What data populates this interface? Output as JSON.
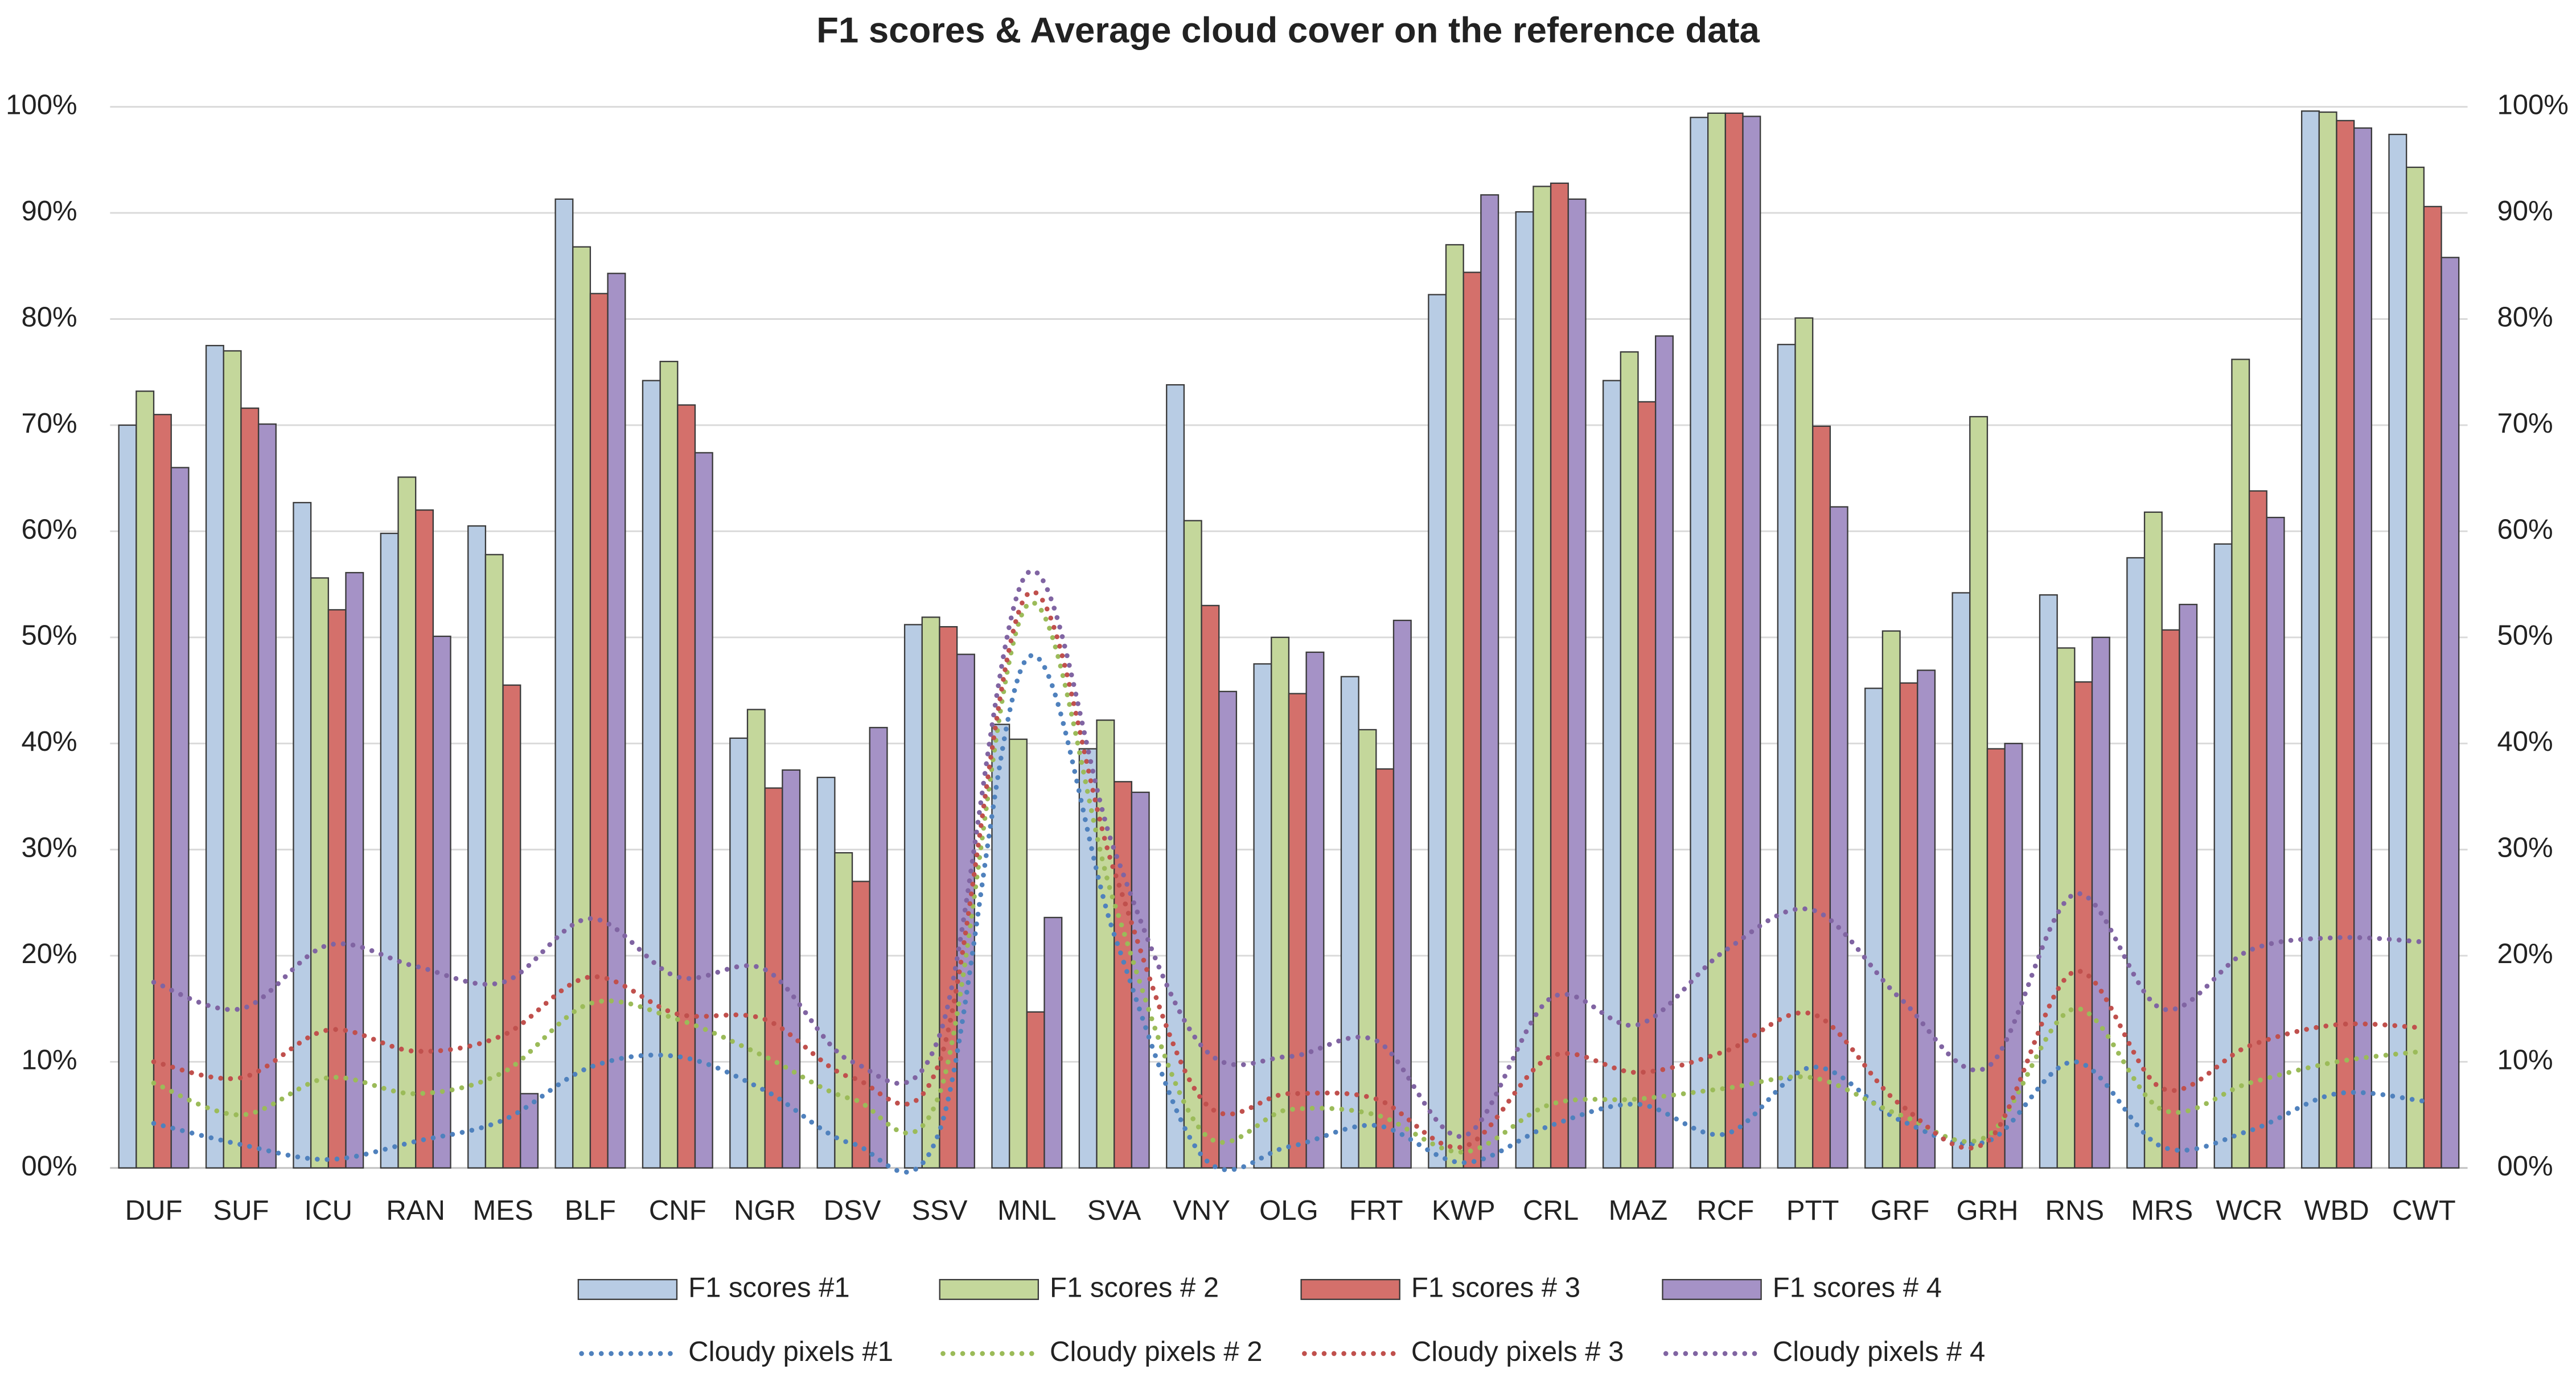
{
  "chart_data": {
    "type": "bar",
    "title": "F1 scores & Average cloud cover on the reference data",
    "categories": [
      "DUF",
      "SUF",
      "ICU",
      "RAN",
      "MES",
      "BLF",
      "CNF",
      "NGR",
      "DSV",
      "SSV",
      "MNL",
      "SVA",
      "VNY",
      "OLG",
      "FRT",
      "KWP",
      "CRL",
      "MAZ",
      "RCF",
      "PTT",
      "GRF",
      "GRH",
      "RNS",
      "MRS",
      "WCR",
      "WBD",
      "CWT"
    ],
    "series": [
      {
        "name": "F1 scores #1",
        "type": "bar",
        "color": "#b8cce4",
        "values": [
          70,
          77.5,
          62.7,
          59.8,
          60.5,
          91.3,
          74.2,
          40.5,
          36.8,
          51.2,
          41.8,
          39.5,
          73.8,
          47.5,
          46.3,
          82.3,
          90.1,
          74.2,
          99,
          77.6,
          45.2,
          54.2,
          54,
          57.5,
          58.8,
          99.6,
          97.4
        ]
      },
      {
        "name": "F1 scores # 2",
        "type": "bar",
        "color": "#c4d79b",
        "values": [
          73.2,
          77,
          55.6,
          65.1,
          57.8,
          86.8,
          76,
          43.2,
          29.7,
          51.9,
          40.4,
          42.2,
          61,
          50,
          41.3,
          87,
          92.5,
          76.9,
          99.4,
          80.1,
          50.6,
          70.8,
          49,
          61.8,
          76.2,
          99.5,
          94.3
        ]
      },
      {
        "name": "F1 scores # 3",
        "type": "bar",
        "color": "#d4706b",
        "values": [
          71,
          71.6,
          52.6,
          62,
          45.5,
          82.4,
          71.9,
          35.8,
          27,
          51,
          14.7,
          36.4,
          53,
          44.7,
          37.6,
          84.4,
          92.8,
          72.2,
          99.4,
          69.9,
          45.7,
          39.5,
          45.8,
          50.7,
          63.8,
          98.7,
          90.6
        ]
      },
      {
        "name": "F1 scores # 4",
        "type": "bar",
        "color": "#a592c6",
        "values": [
          66,
          70.1,
          56.1,
          50.1,
          7,
          84.3,
          67.4,
          37.5,
          41.5,
          48.4,
          23.6,
          35.4,
          44.9,
          48.6,
          51.6,
          91.7,
          91.3,
          78.4,
          99.1,
          62.3,
          46.9,
          40,
          50,
          53.1,
          61.3,
          98,
          85.8
        ]
      },
      {
        "name": "Cloudy pixels #1",
        "type": "line",
        "axis": "y2",
        "color": "#4f81bd",
        "values": [
          4.2,
          2.2,
          0.8,
          2.5,
          4.5,
          9.5,
          10.5,
          7.3,
          2.3,
          3.5,
          48,
          22,
          1.2,
          2,
          4,
          0.5,
          4,
          6,
          3.2,
          9.5,
          4.5,
          2.5,
          10,
          2,
          3.5,
          7,
          6.3
        ]
      },
      {
        "name": "Cloudy pixels # 2",
        "type": "line",
        "axis": "y2",
        "color": "#9bbb59",
        "values": [
          8,
          5,
          8.5,
          7,
          9,
          15.5,
          14,
          10.5,
          6.5,
          7,
          53,
          25,
          3.5,
          5.5,
          5,
          1.5,
          6,
          6.5,
          7.5,
          8.5,
          5,
          3,
          15,
          5.5,
          8,
          10,
          11
        ]
      },
      {
        "name": "Cloudy pixels # 3",
        "type": "line",
        "axis": "y2",
        "color": "#c0504d",
        "values": [
          10,
          8.5,
          13,
          11,
          12.5,
          18,
          14.5,
          14,
          8.5,
          10,
          54,
          28,
          6.5,
          7,
          6.5,
          2,
          10.5,
          9,
          11,
          14.5,
          6,
          2.5,
          18.5,
          7.5,
          11.5,
          13.5,
          13.2
        ]
      },
      {
        "name": "Cloudy pixels # 4",
        "type": "line",
        "axis": "y2",
        "color": "#8064a2",
        "values": [
          17.5,
          15,
          21,
          19,
          17.5,
          23.5,
          18,
          18.7,
          10,
          12.5,
          56,
          30,
          11.5,
          10.5,
          12,
          3,
          16,
          13.5,
          20.5,
          24.3,
          16,
          9.5,
          25.8,
          15,
          20.5,
          21.7,
          21.3
        ]
      }
    ],
    "ylim": [
      0,
      100
    ],
    "yticks": [
      {
        "value": 0,
        "label": "00%"
      },
      {
        "value": 10,
        "label": "10%"
      },
      {
        "value": 20,
        "label": "20%"
      },
      {
        "value": 30,
        "label": "30%"
      },
      {
        "value": 40,
        "label": "40%"
      },
      {
        "value": 50,
        "label": "50%"
      },
      {
        "value": 60,
        "label": "60%"
      },
      {
        "value": 70,
        "label": "70%"
      },
      {
        "value": 80,
        "label": "80%"
      },
      {
        "value": 90,
        "label": "90%"
      },
      {
        "value": 100,
        "label": "100%"
      }
    ],
    "y2lim": [
      0,
      100
    ],
    "y2ticks": [
      {
        "value": 0,
        "label": "00%"
      },
      {
        "value": 10,
        "label": "10%"
      },
      {
        "value": 20,
        "label": "20%"
      },
      {
        "value": 30,
        "label": "30%"
      },
      {
        "value": 40,
        "label": "40%"
      },
      {
        "value": 50,
        "label": "50%"
      },
      {
        "value": 60,
        "label": "60%"
      },
      {
        "value": 70,
        "label": "70%"
      },
      {
        "value": 80,
        "label": "80%"
      },
      {
        "value": 90,
        "label": "90%"
      },
      {
        "value": 100,
        "label": "100%"
      }
    ],
    "grid": true,
    "legend": "bottom"
  }
}
